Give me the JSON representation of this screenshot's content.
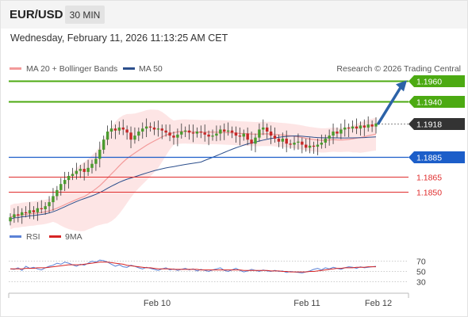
{
  "header": {
    "pair": "EUR/USD",
    "timeframe": "30 MIN",
    "datetime": "Wednesday, February 11, 2026 11:13:25 AM CET"
  },
  "legend": {
    "ma20_bb": "MA 20 + Bollinger Bands",
    "ma50": "MA 50",
    "copyright": "Research © 2026 Trading Central"
  },
  "rsi_legend": {
    "rsi": "RSI",
    "ma9": "9MA"
  },
  "colors": {
    "resistance": "#4caa12",
    "current": "#333333",
    "pivot": "#1c5ec9",
    "support": "#e02d2d",
    "arrow": "#2c62a8",
    "ma20": "#f39a9a",
    "ma50": "#2c4f8c",
    "bollinger": "#fcdcdc",
    "candle_up": "#4a9b2e",
    "candle_down": "#c62828",
    "rsi": "#5b82d6",
    "rsi_ma": "#d62424"
  },
  "chart_data": {
    "type": "candlestick",
    "instrument": "EUR/USD",
    "timeframe": "30 MIN",
    "x_ticks": [
      "Feb 10",
      "Feb 11",
      "Feb 12"
    ],
    "y_range": [
      1.1822,
      1.1965
    ],
    "levels": [
      {
        "name": "resistance-2",
        "value": 1.196,
        "label": "1.1960",
        "kind": "resistance"
      },
      {
        "name": "resistance-1",
        "value": 1.194,
        "label": "1.1940",
        "kind": "resistance"
      },
      {
        "name": "last-price",
        "value": 1.1918,
        "label": "1.1918",
        "kind": "current"
      },
      {
        "name": "pivot",
        "value": 1.1885,
        "label": "1.1885",
        "kind": "pivot"
      },
      {
        "name": "support-1",
        "value": 1.1865,
        "label": "1.1865",
        "kind": "support"
      },
      {
        "name": "support-2",
        "value": 1.185,
        "label": "1.1850",
        "kind": "support"
      }
    ],
    "close": [
      1.1825,
      1.1828,
      1.1827,
      1.183,
      1.1829,
      1.1832,
      1.183,
      1.1834,
      1.1833,
      1.1836,
      1.184,
      1.1846,
      1.1852,
      1.1858,
      1.1862,
      1.1866,
      1.1868,
      1.1871,
      1.1873,
      1.187,
      1.1874,
      1.1878,
      1.1883,
      1.1892,
      1.1902,
      1.191,
      1.1913,
      1.1911,
      1.1914,
      1.1912,
      1.1909,
      1.1902,
      1.1906,
      1.191,
      1.1913,
      1.1915,
      1.1914,
      1.1912,
      1.1913,
      1.1911,
      1.1909,
      1.1906,
      1.1904,
      1.1907,
      1.191,
      1.1911,
      1.1909,
      1.1908,
      1.191,
      1.1909,
      1.1907,
      1.1905,
      1.1906,
      1.1908,
      1.1912,
      1.191,
      1.1911,
      1.1909,
      1.1906,
      1.1905,
      1.1908,
      1.1902,
      1.1898,
      1.1904,
      1.1912,
      1.1914,
      1.191,
      1.1906,
      1.1903,
      1.19,
      1.1903,
      1.1898,
      1.1897,
      1.1899,
      1.19,
      1.1897,
      1.1894,
      1.1896,
      1.1895,
      1.1897,
      1.1899,
      1.1903,
      1.1906,
      1.191,
      1.1908,
      1.1912,
      1.1914,
      1.1913,
      1.1915,
      1.1913,
      1.1916,
      1.1914,
      1.1917,
      1.1915,
      1.1918
    ],
    "ma20_last": 1.1909,
    "ma50_last": 1.1912,
    "rsi": {
      "levels": [
        70,
        50,
        30
      ],
      "values": [
        55,
        54,
        57,
        52,
        60,
        56,
        58,
        55,
        53,
        57,
        60,
        62,
        66,
        64,
        68,
        66,
        63,
        60,
        64,
        62,
        66,
        70,
        68,
        72,
        71,
        68,
        64,
        60,
        63,
        59,
        58,
        62,
        60,
        57,
        55,
        58,
        56,
        54,
        52,
        55,
        57,
        53,
        55,
        52,
        54,
        56,
        53,
        55,
        51,
        54,
        52,
        50,
        53,
        55,
        57,
        52,
        50,
        53,
        56,
        52,
        49,
        51,
        54,
        52,
        50,
        53,
        51,
        50,
        52,
        50,
        51,
        48,
        50,
        49,
        48,
        47,
        49,
        51,
        54,
        56,
        53,
        57,
        55,
        58,
        56,
        54,
        57,
        59,
        58,
        56,
        59,
        57,
        58,
        59,
        60
      ],
      "ma9": [
        55,
        55,
        55,
        55,
        56,
        56,
        56,
        57,
        57,
        57,
        58,
        59,
        60,
        61,
        62,
        63,
        63,
        63,
        63,
        64,
        65,
        66,
        67,
        68,
        68,
        68,
        67,
        66,
        65,
        64,
        62,
        61,
        60,
        59,
        58,
        57,
        57,
        56,
        55,
        55,
        55,
        55,
        54,
        54,
        54,
        54,
        54,
        54,
        54,
        53,
        53,
        53,
        53,
        53,
        53,
        53,
        53,
        53,
        53,
        53,
        52,
        52,
        52,
        52,
        52,
        52,
        52,
        51,
        51,
        51,
        50,
        50,
        49,
        49,
        49,
        49,
        49,
        50,
        50,
        51,
        52,
        53,
        54,
        55,
        56,
        56,
        57,
        57,
        57,
        58,
        58,
        58,
        59,
        59,
        59
      ]
    }
  }
}
